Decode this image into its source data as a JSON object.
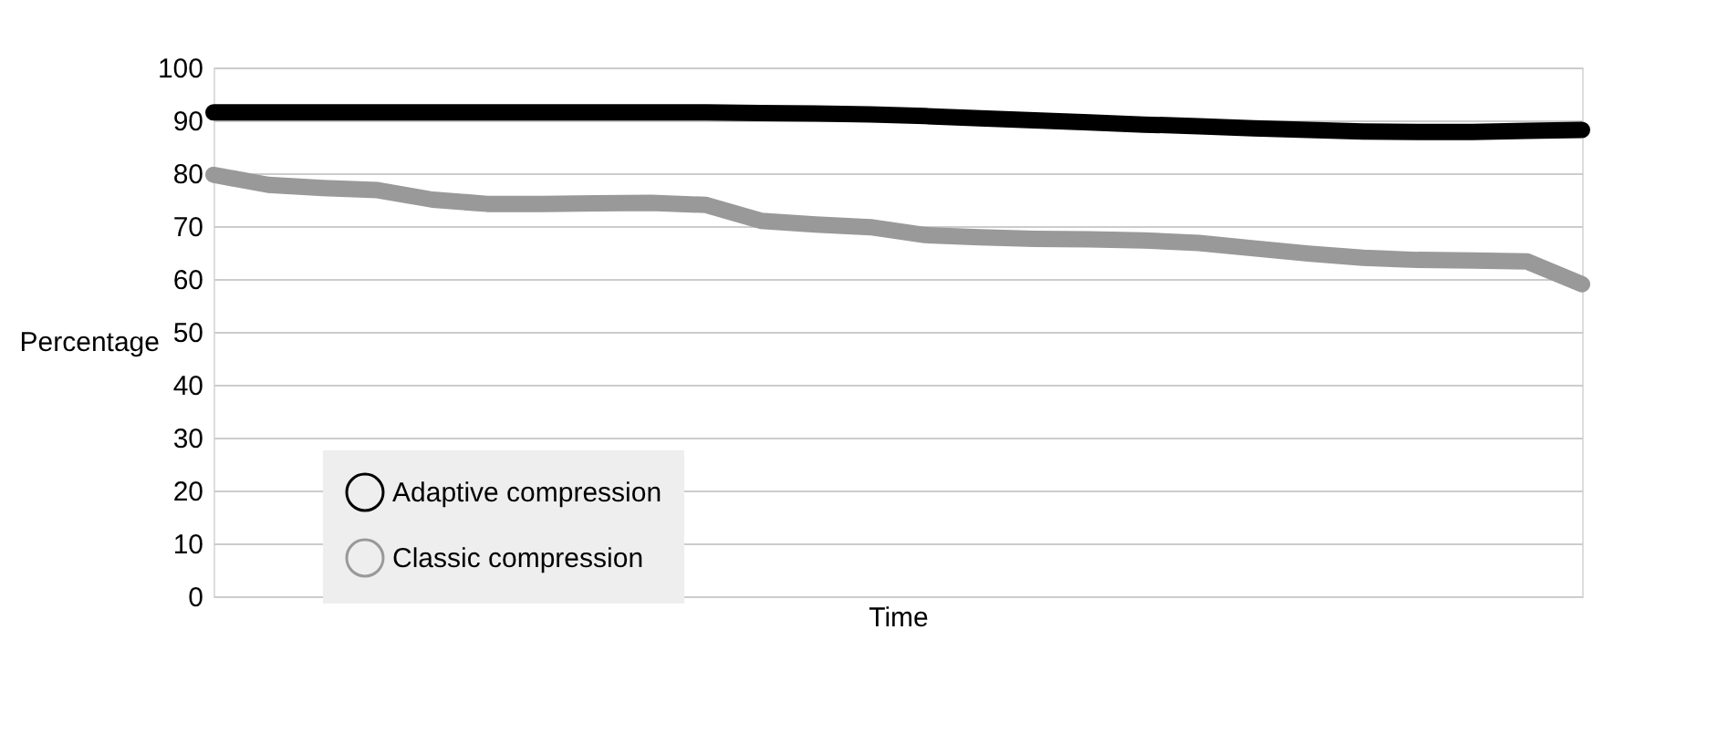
{
  "chart_data": {
    "type": "line",
    "xlabel": "Time",
    "ylabel": "Percentage",
    "categories": [
      null,
      null,
      null,
      null,
      null,
      null,
      null,
      null,
      null,
      null,
      null,
      null,
      null,
      null,
      null,
      null,
      null,
      null,
      null,
      null,
      null,
      null,
      null,
      null,
      null,
      null
    ],
    "series": [
      {
        "name": "Adaptive compression",
        "color": "#000000",
        "values": [
          91.5,
          91.5,
          91.5,
          91.5,
          91.5,
          91.5,
          91.5,
          91.5,
          91.5,
          91.5,
          91.4,
          91.3,
          91.1,
          90.8,
          90.4,
          90.0,
          89.6,
          89.2,
          88.9,
          88.5,
          88.2,
          87.9,
          87.8,
          87.8,
          88.0,
          88.2
        ]
      },
      {
        "name": "Classic compression",
        "color": "#999999",
        "values": [
          79.7,
          77.8,
          77.2,
          76.8,
          75.0,
          74.2,
          74.2,
          74.3,
          74.4,
          74.0,
          71.0,
          70.3,
          69.8,
          68.3,
          67.9,
          67.6,
          67.5,
          67.3,
          66.8,
          65.8,
          64.8,
          64.0,
          63.6,
          63.5,
          63.3,
          59.0
        ]
      }
    ],
    "ylim": [
      0,
      100
    ],
    "yticks": [
      0,
      10,
      20,
      30,
      40,
      50,
      60,
      70,
      80,
      90,
      100
    ],
    "grid": "y",
    "legend": "bottom left",
    "tick_labels": "y",
    "marker": "none",
    "line_style": "solid"
  }
}
